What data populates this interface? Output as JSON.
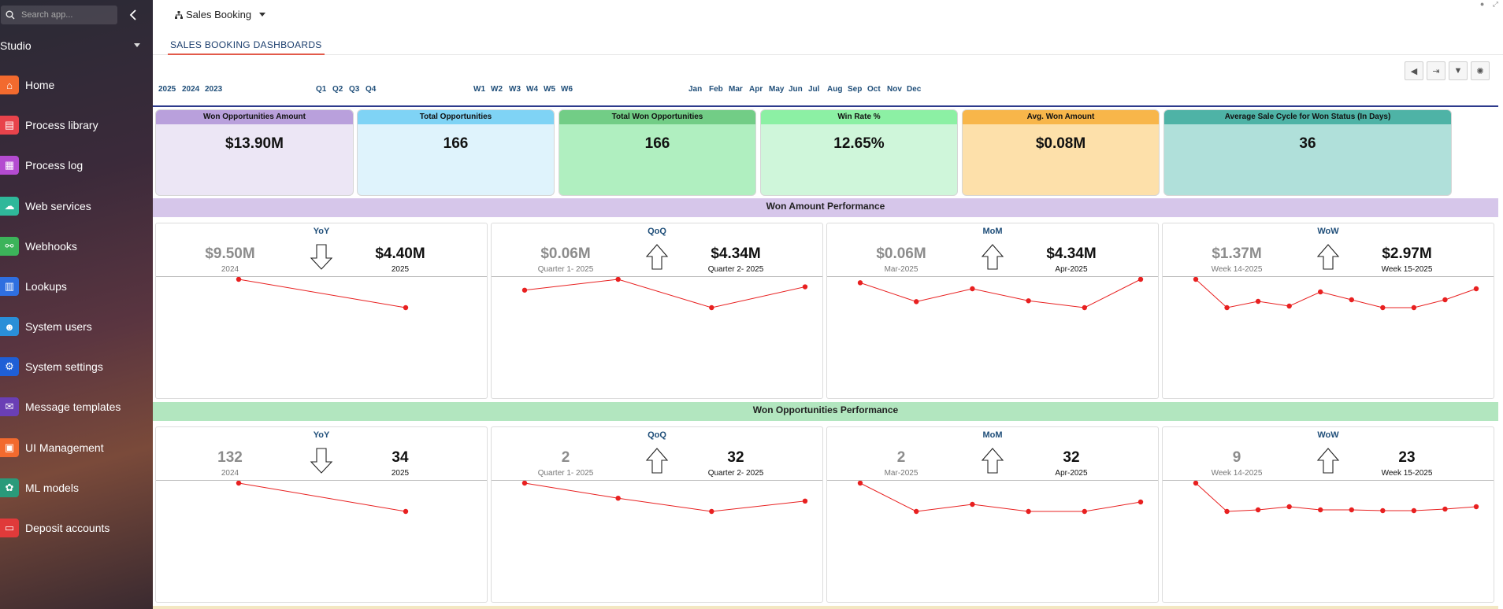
{
  "sidebar": {
    "search_placeholder": "Search app...",
    "workspace": "Studio",
    "items": [
      {
        "label": "Home",
        "icon": "home-icon",
        "color": "#f26a2e"
      },
      {
        "label": "Process library",
        "icon": "process-library-icon",
        "color": "#e8434b"
      },
      {
        "label": "Process log",
        "icon": "process-log-icon",
        "color": "#b44bd0"
      },
      {
        "label": "Web services",
        "icon": "cloud-icon",
        "color": "#2fb89a"
      },
      {
        "label": "Webhooks",
        "icon": "webhook-icon",
        "color": "#3cb35a"
      },
      {
        "label": "Lookups",
        "icon": "lookup-icon",
        "color": "#2f6fe0"
      },
      {
        "label": "System users",
        "icon": "users-icon",
        "color": "#2a8fd8"
      },
      {
        "label": "System settings",
        "icon": "settings-icon",
        "color": "#1f5fd6"
      },
      {
        "label": "Message templates",
        "icon": "message-template-icon",
        "color": "#6a3fb5"
      },
      {
        "label": "UI Management",
        "icon": "ui-management-icon",
        "color": "#f26a2e"
      },
      {
        "label": "ML models",
        "icon": "ml-model-icon",
        "color": "#2a9a7a"
      },
      {
        "label": "Deposit accounts",
        "icon": "deposit-icon",
        "color": "#e03a3a"
      }
    ]
  },
  "header": {
    "app_name": "Sales Booking",
    "tab": "SALES BOOKING DASHBOARDS"
  },
  "filters": {
    "years": [
      "2025",
      "2024",
      "2023"
    ],
    "quarters": [
      "Q1",
      "Q2",
      "Q3",
      "Q4"
    ],
    "weeks": [
      "W1",
      "W2",
      "W3",
      "W4",
      "W5",
      "W6"
    ],
    "months": [
      "Jan",
      "Feb",
      "Mar",
      "Apr",
      "May",
      "Jun",
      "Jul",
      "Aug",
      "Sep",
      "Oct",
      "Nov",
      "Dec"
    ]
  },
  "toolbar": {
    "icons": [
      "megaphone-icon",
      "export-icon",
      "filter-icon",
      "lightbulb-icon"
    ]
  },
  "kpis": [
    {
      "title": "Won Opportunities Amount",
      "value": "$13.90M",
      "head_color": "#b9a0dc",
      "body_color": "#ece6f5"
    },
    {
      "title": "Total Opportunities",
      "value": "166",
      "head_color": "#7fd3f5",
      "body_color": "#dff3fc"
    },
    {
      "title": "Total Won Opportunities",
      "value": "166",
      "head_color": "#72cd86",
      "body_color": "#b0efc0"
    },
    {
      "title": "Win Rate %",
      "value": "12.65%",
      "head_color": "#8cf0a4",
      "body_color": "#cff6da"
    },
    {
      "title": "Avg. Won Amount",
      "value": "$0.08M",
      "head_color": "#f8b64a",
      "body_color": "#fde0aa"
    },
    {
      "title": "Average Sale Cycle for Won Status (In Days)",
      "value": "36",
      "head_color": "#4eb3a6",
      "body_color": "#b0e0da"
    }
  ],
  "sections": [
    {
      "title": "Won Amount Performance",
      "color": "#d6c6ea",
      "panels": [
        {
          "title": "YoY",
          "prev_value": "$9.50M",
          "prev_label": "2024",
          "curr_value": "$4.40M",
          "curr_label": "2025",
          "direction": "down",
          "chart_data": {
            "type": "line",
            "x": [
              "2024",
              "2025"
            ],
            "values": [
              9.5,
              4.4
            ],
            "color": "#e82020"
          }
        },
        {
          "title": "QoQ",
          "prev_value": "$0.06M",
          "prev_label": "Quarter 1- 2025",
          "curr_value": "$4.34M",
          "curr_label": "Quarter 2- 2025",
          "direction": "up",
          "chart_data": {
            "type": "line",
            "values": [
              3.9,
              5.2,
              1.8,
              4.3
            ],
            "color": "#e82020"
          }
        },
        {
          "title": "MoM",
          "prev_value": "$0.06M",
          "prev_label": "Mar-2025",
          "curr_value": "$4.34M",
          "curr_label": "Apr-2025",
          "direction": "up",
          "chart_data": {
            "type": "line",
            "values": [
              4.5,
              2.3,
              3.8,
              2.4,
              1.6,
              4.9
            ],
            "color": "#e82020"
          }
        },
        {
          "title": "WoW",
          "prev_value": "$1.37M",
          "prev_label": "Week 14-2025",
          "curr_value": "$2.97M",
          "curr_label": "Week 15-2025",
          "direction": "up",
          "chart_data": {
            "type": "line",
            "values": [
              3.0,
              1.2,
              1.6,
              1.3,
              2.2,
              1.7,
              1.2,
              1.2,
              1.7,
              2.4
            ],
            "color": "#e82020"
          }
        }
      ]
    },
    {
      "title": "Won Opportunities Performance",
      "color": "#b2e6bf",
      "panels": [
        {
          "title": "YoY",
          "prev_value": "132",
          "prev_label": "2024",
          "curr_value": "34",
          "curr_label": "2025",
          "direction": "down",
          "chart_data": {
            "type": "line",
            "x": [
              "2024",
              "2025"
            ],
            "values": [
              132,
              34
            ],
            "color": "#e82020"
          }
        },
        {
          "title": "QoQ",
          "prev_value": "2",
          "prev_label": "Quarter 1- 2025",
          "curr_value": "32",
          "curr_label": "Quarter 2- 2025",
          "direction": "up",
          "chart_data": {
            "type": "line",
            "values": [
              50,
              34,
              20,
              31
            ],
            "color": "#e82020"
          }
        },
        {
          "title": "MoM",
          "prev_value": "2",
          "prev_label": "Mar-2025",
          "curr_value": "32",
          "curr_label": "Apr-2025",
          "direction": "up",
          "chart_data": {
            "type": "line",
            "values": [
              32,
              20,
              23,
              20,
              20,
              24
            ],
            "color": "#e82020"
          }
        },
        {
          "title": "WoW",
          "prev_value": "9",
          "prev_label": "Week 14-2025",
          "curr_value": "23",
          "curr_label": "Week 15-2025",
          "direction": "up",
          "chart_data": {
            "type": "line",
            "values": [
              30,
              12,
              13,
              15,
              13,
              13,
              12.5,
              12.5,
              13.5,
              15
            ],
            "color": "#e82020"
          }
        }
      ]
    }
  ]
}
